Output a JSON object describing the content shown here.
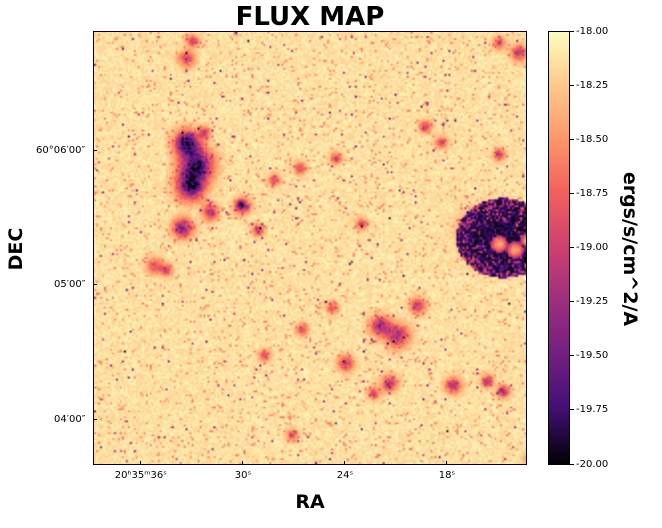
{
  "chart_data": {
    "type": "heatmap",
    "title": "FLUX MAP",
    "xlabel": "RA",
    "ylabel": "DEC",
    "x_ticks": [
      {
        "pos": 0.11,
        "label": "20ʰ35ᵐ36ˢ"
      },
      {
        "pos": 0.345,
        "label": "30ˢ"
      },
      {
        "pos": 0.58,
        "label": "24ˢ"
      },
      {
        "pos": 0.815,
        "label": "18ˢ"
      }
    ],
    "y_ticks": [
      {
        "pos": 0.275,
        "label": "60°06′00″"
      },
      {
        "pos": 0.585,
        "label": "05′00″"
      },
      {
        "pos": 0.895,
        "label": "04′00″"
      }
    ],
    "colorbar": {
      "label": "ergs/s/cm^2/A",
      "range": [
        -20.0,
        -18.0
      ],
      "colormap": "magma",
      "ticks": [
        "-18.00",
        "-18.25",
        "-18.50",
        "-18.75",
        "-19.00",
        "-19.25",
        "-19.50",
        "-19.75",
        "-20.00"
      ]
    },
    "colors": {
      "background_flux": "#fbefb8"
    }
  }
}
